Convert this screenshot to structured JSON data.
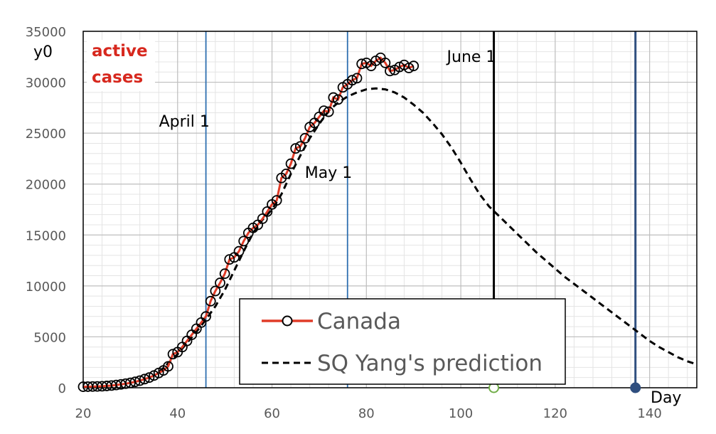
{
  "chart_data": {
    "type": "line",
    "xlabel": "Day",
    "ylabel": "y0",
    "xlim": [
      20,
      150
    ],
    "ylim": [
      0,
      35000
    ],
    "x_ticks": [
      "20",
      "40",
      "60",
      "80",
      "100",
      "120",
      "140"
    ],
    "y_ticks": [
      "0",
      "5000",
      "10000",
      "15000",
      "20000",
      "25000",
      "30000",
      "35000"
    ],
    "inset_label": [
      "active",
      "cases"
    ],
    "grid": true,
    "legend_position": "bottom-center",
    "vlines": [
      {
        "x": 46,
        "label": "April 1",
        "color": "#2e6fb0"
      },
      {
        "x": 76,
        "label": "May 1",
        "color": "#2e6fb0"
      },
      {
        "x": 107,
        "label": "June 1",
        "color": "#000000"
      },
      {
        "x": 137,
        "label": "",
        "color": "#2f4f7f"
      }
    ],
    "markers": [
      {
        "x": 107,
        "y": 0,
        "color": "#70ad47",
        "fill": "none"
      },
      {
        "x": 137,
        "y": 0,
        "color": "#2f4f7f",
        "fill": "#2f4f7f"
      }
    ],
    "series": [
      {
        "name": "Canada",
        "color": "#e03c28",
        "style": "solid-with-circles",
        "x": [
          20,
          21,
          22,
          23,
          24,
          25,
          26,
          27,
          28,
          29,
          30,
          31,
          32,
          33,
          34,
          35,
          36,
          37,
          38,
          39,
          40,
          41,
          42,
          43,
          44,
          45,
          46,
          47,
          48,
          49,
          50,
          51,
          52,
          53,
          54,
          55,
          56,
          57,
          58,
          59,
          60,
          61,
          62,
          63,
          64,
          65,
          66,
          67,
          68,
          69,
          70,
          71,
          72,
          73,
          74,
          75,
          76,
          77,
          78,
          79,
          80,
          81,
          82,
          83,
          84,
          85,
          86,
          87,
          88,
          89,
          90
        ],
        "y": [
          100,
          110,
          120,
          130,
          150,
          180,
          220,
          270,
          330,
          400,
          480,
          580,
          700,
          850,
          1000,
          1200,
          1450,
          1700,
          2100,
          3300,
          3500,
          4000,
          4600,
          5200,
          5800,
          6400,
          7000,
          8500,
          9500,
          10300,
          11200,
          12600,
          12800,
          13400,
          14400,
          15200,
          15700,
          16000,
          16600,
          17300,
          18000,
          18400,
          20600,
          21000,
          22000,
          23500,
          23700,
          24500,
          25600,
          26000,
          26600,
          27200,
          27100,
          28500,
          28300,
          29500,
          29800,
          30200,
          30400,
          31800,
          31900,
          31600,
          32100,
          32400,
          31900,
          31100,
          31200,
          31500,
          31700,
          31400,
          31600
        ]
      },
      {
        "name": "SQ Yang's prediction",
        "color": "#000000",
        "style": "dashed",
        "x": [
          36,
          38,
          40,
          42,
          44,
          46,
          48,
          50,
          52,
          54,
          56,
          58,
          60,
          62,
          64,
          66,
          68,
          70,
          72,
          74,
          76,
          78,
          80,
          82,
          84,
          86,
          88,
          90,
          92,
          94,
          96,
          98,
          100,
          102,
          104,
          106,
          108,
          110,
          112,
          114,
          116,
          118,
          120,
          122,
          124,
          126,
          128,
          130,
          132,
          134,
          136,
          138,
          140,
          142,
          144,
          146,
          148,
          150
        ],
        "y": [
          1500,
          2400,
          3300,
          4400,
          5500,
          6700,
          8000,
          9600,
          11500,
          13400,
          15200,
          16500,
          17500,
          19000,
          21000,
          22800,
          24500,
          25900,
          27200,
          28000,
          28600,
          29000,
          29300,
          29400,
          29300,
          29000,
          28500,
          27800,
          27000,
          26000,
          24900,
          23600,
          22100,
          20500,
          19000,
          17800,
          16900,
          16000,
          15100,
          14200,
          13300,
          12500,
          11700,
          10900,
          10200,
          9500,
          8800,
          8100,
          7400,
          6700,
          6000,
          5300,
          4600,
          4000,
          3500,
          3000,
          2600,
          2300
        ]
      }
    ]
  }
}
